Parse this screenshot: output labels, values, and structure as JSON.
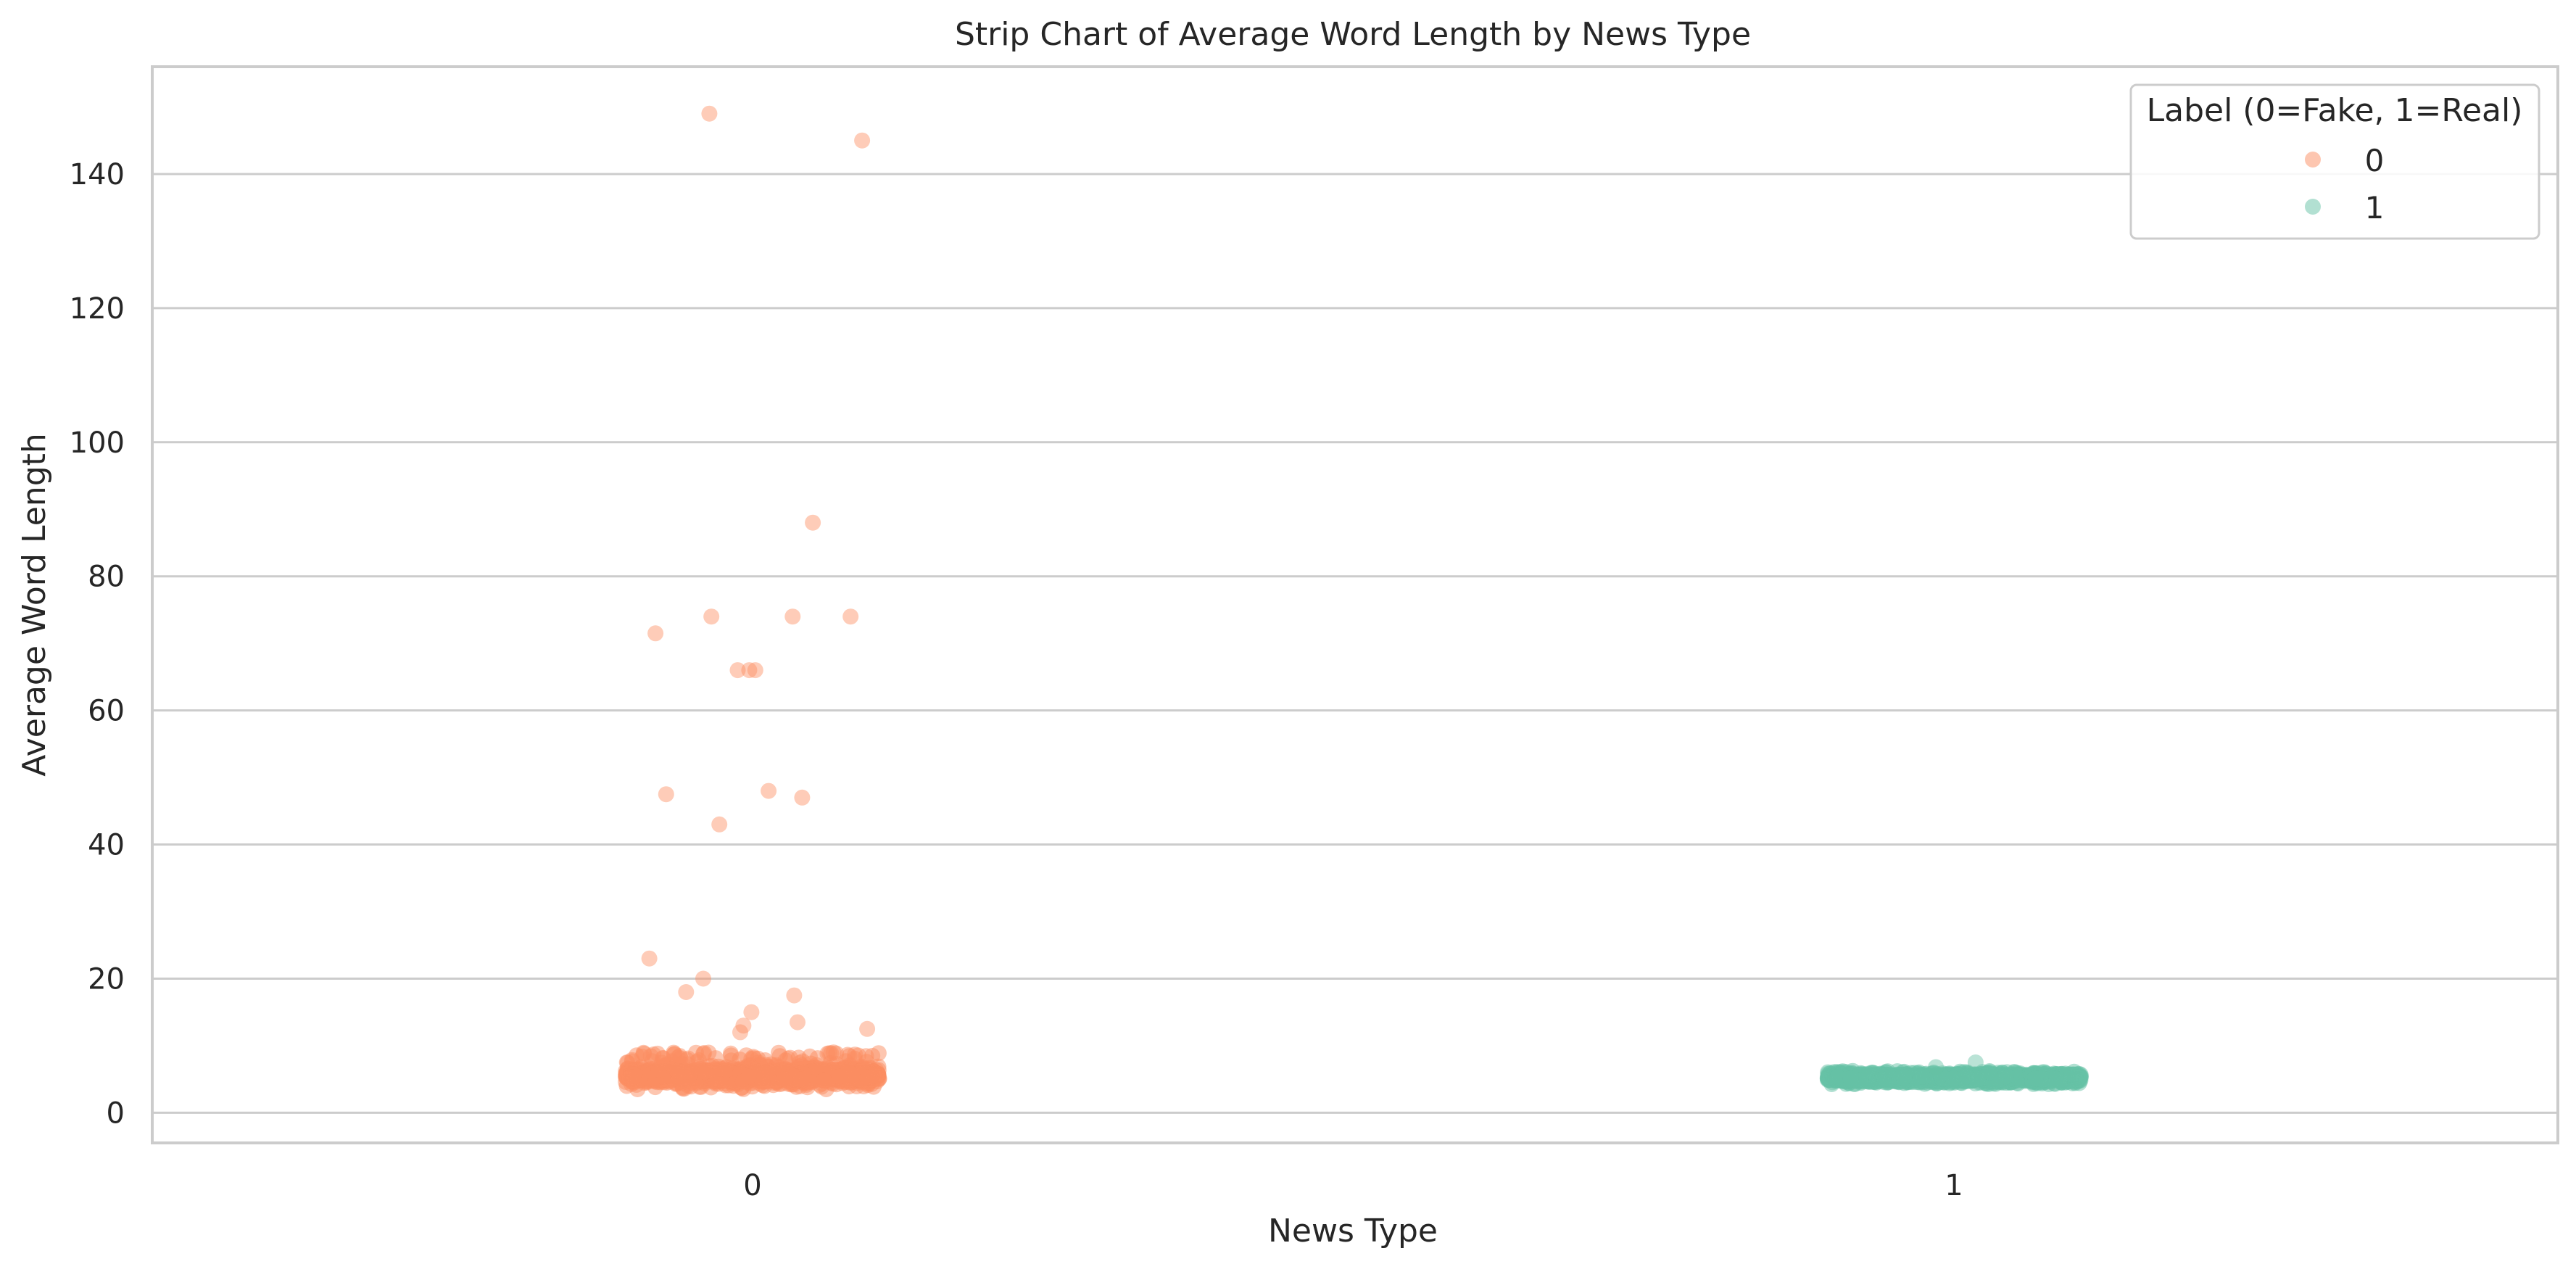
{
  "chart_data": {
    "type": "scatter",
    "subtype": "strip",
    "title": "Strip Chart of Average Word Length by News Type",
    "xlabel": "News Type",
    "ylabel": "Average Word Length",
    "categories": [
      "0",
      "1"
    ],
    "ylim": [
      -4.5,
      156
    ],
    "yticks": [
      0,
      20,
      40,
      60,
      80,
      100,
      120,
      140
    ],
    "grid": "horizontal",
    "legend": {
      "title": "Label (0=Fake, 1=Real)",
      "placement": "top-right",
      "entries": [
        "0",
        "1"
      ]
    },
    "series": [
      {
        "name": "0",
        "category": "0",
        "color": "#fc8d62",
        "outliers": [
          145,
          149,
          88,
          74,
          71.5,
          66,
          66,
          74,
          74,
          66,
          47,
          43,
          48,
          47.5,
          23,
          18,
          17.5,
          20,
          15,
          13.5,
          13,
          12.5,
          12
        ],
        "bulk_range": [
          3.5,
          9
        ],
        "bulk_center": 5.5
      },
      {
        "name": "1",
        "category": "1",
        "color": "#66c2a5",
        "outliers": [
          7.5,
          6.8
        ],
        "bulk_range": [
          4,
          6.5
        ],
        "bulk_center": 5.2
      }
    ]
  }
}
